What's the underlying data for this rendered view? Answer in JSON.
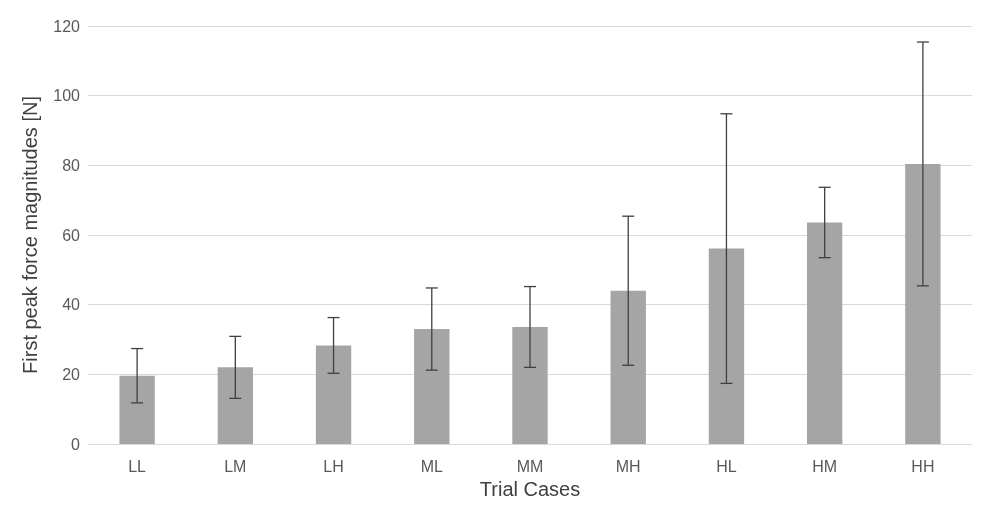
{
  "chart_data": {
    "type": "bar",
    "xlabel": "Trial Cases",
    "ylabel": "First peak force magnitudes [N]",
    "categories": [
      "LL",
      "LM",
      "LH",
      "ML",
      "MM",
      "MH",
      "HL",
      "HM",
      "HH"
    ],
    "values": [
      19.6,
      22,
      28.3,
      33,
      33.6,
      44,
      56.1,
      63.6,
      80.4
    ],
    "errors": [
      7.8,
      8.9,
      8,
      11.8,
      11.6,
      21.4,
      38.7,
      10.1,
      35
    ],
    "color": "#a5a5a5",
    "ylim": [
      0,
      120
    ],
    "yticks": [
      0,
      20,
      40,
      60,
      80,
      100,
      120
    ],
    "grid": "y"
  }
}
